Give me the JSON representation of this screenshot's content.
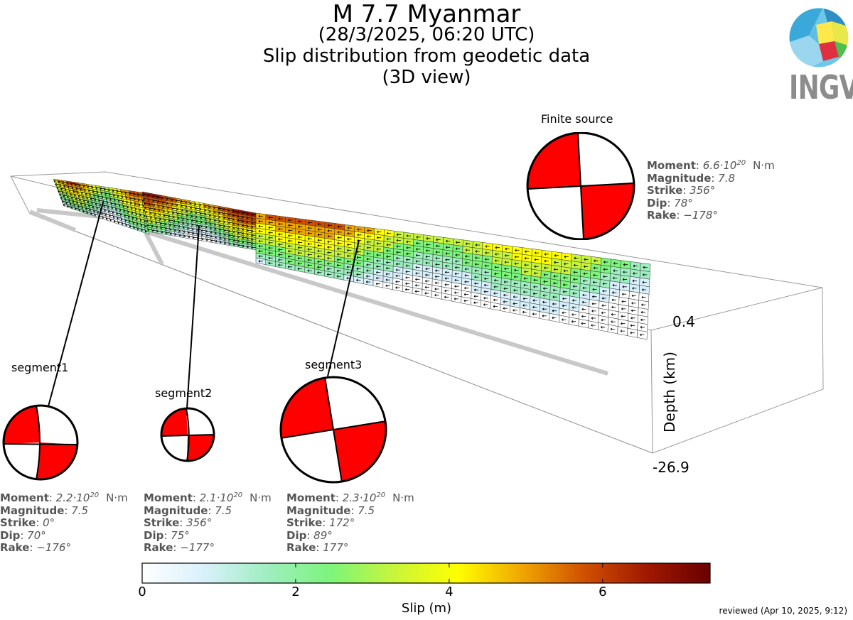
{
  "title": {
    "line1": "M 7.7 Myanmar",
    "line2": "(28/3/2025, 06:20 UTC)",
    "line3": "Slip distribution from geodetic data",
    "line4": "(3D view)"
  },
  "logo": {
    "text": "INGV",
    "icon": "globe-icon"
  },
  "finite_source": {
    "label": "Finite source",
    "moment_label": "Moment",
    "moment_mantissa": "6.6·10",
    "moment_exp": "20",
    "moment_unit": "N·m",
    "magnitude_label": "Magnitude",
    "magnitude": "7.8",
    "strike_label": "Strike",
    "strike": "356°",
    "dip_label": "Dip",
    "dip": "78°",
    "rake_label": "Rake",
    "rake": "−178°"
  },
  "segments": [
    {
      "label": "segment1",
      "moment_label": "Moment",
      "moment_mantissa": "2.2·10",
      "moment_exp": "20",
      "moment_unit": "N·m",
      "magnitude_label": "Magnitude",
      "magnitude": "7.5",
      "strike_label": "Strike",
      "strike": "0°",
      "dip_label": "Dip",
      "dip": "70°",
      "rake_label": "Rake",
      "rake": "−176°"
    },
    {
      "label": "segment2",
      "moment_label": "Moment",
      "moment_mantissa": "2.1·10",
      "moment_exp": "20",
      "moment_unit": "N·m",
      "magnitude_label": "Magnitude",
      "magnitude": "7.5",
      "strike_label": "Strike",
      "strike": "356°",
      "dip_label": "Dip",
      "dip": "75°",
      "rake_label": "Rake",
      "rake": "−177°"
    },
    {
      "label": "segment3",
      "moment_label": "Moment",
      "moment_mantissa": "2.3·10",
      "moment_exp": "20",
      "moment_unit": "N·m",
      "magnitude_label": "Magnitude",
      "magnitude": "7.5",
      "strike_label": "Strike",
      "strike": "172°",
      "dip_label": "Dip",
      "dip": "89°",
      "rake_label": "Rake",
      "rake": "177°"
    }
  ],
  "depth_axis": {
    "label": "Depth (km)",
    "top": "0.4",
    "bottom": "-26.9"
  },
  "colorbar": {
    "label": "Slip (m)",
    "min": 0,
    "max": 7.4,
    "ticks": [
      "0",
      "2",
      "4",
      "6"
    ],
    "tick_values": [
      0,
      2,
      4,
      6
    ],
    "colors": [
      "#ffffff",
      "#d8f0fb",
      "#9eeec0",
      "#7cf57a",
      "#c8f53a",
      "#ffff00",
      "#f0a800",
      "#d05000",
      "#a01800",
      "#6a0000"
    ]
  },
  "footer": {
    "reviewed": "reviewed (Apr 10, 2025, 9:12)"
  },
  "colors": {
    "beachball_fill": "#ff0000",
    "fault_trace": "#c8c8c8",
    "box_edge": "#999999"
  }
}
